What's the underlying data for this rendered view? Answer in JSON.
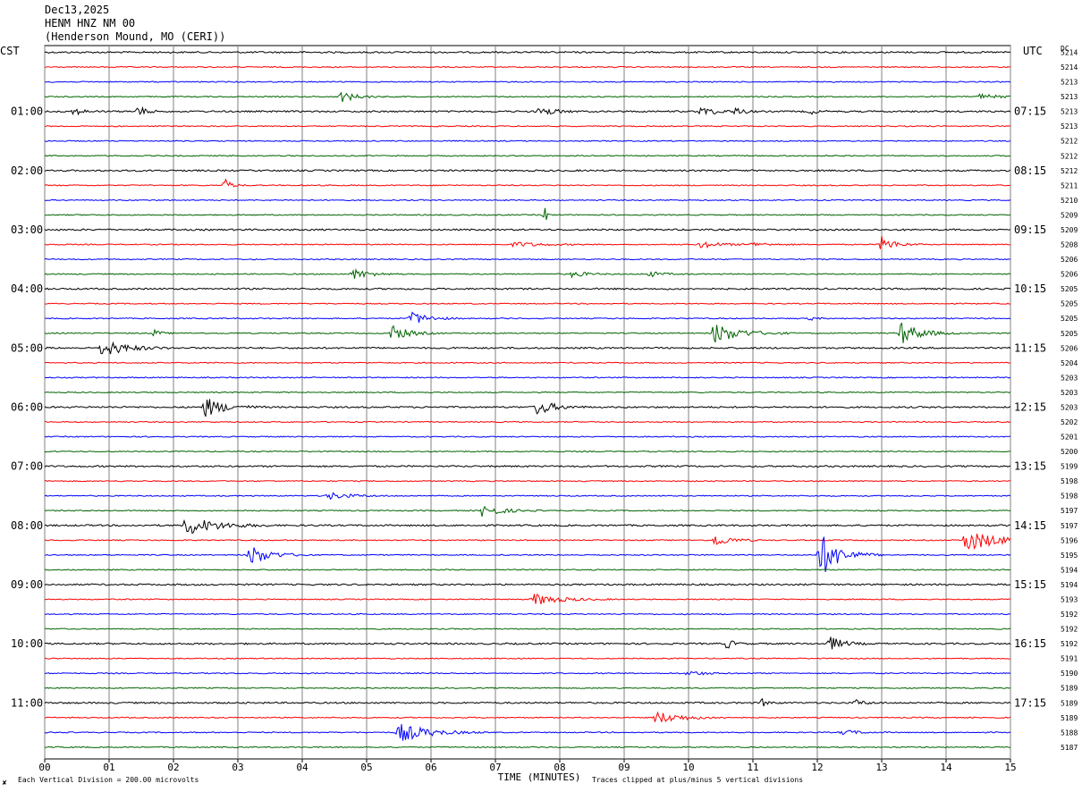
{
  "header": {
    "date": "Dec13,2025",
    "station": "HENM HNZ NM 00",
    "location": "(Henderson Mound, MO (CERI))"
  },
  "left_zone": "CST",
  "right_zone": "UTC",
  "dc_header": "DC",
  "footer": {
    "scale_mark": "✘",
    "scale_note": "Each Vertical Division =  200.00 microvolts",
    "clip_note": "Traces clipped at plus/minus 5 vertical divisions"
  },
  "trace_colors": [
    "#000000",
    "#ff0000",
    "#0000ff",
    "#006400"
  ],
  "chart_data": {
    "type": "line",
    "title": "",
    "xlabel": "TIME (MINUTES)",
    "xlim": [
      0,
      15
    ],
    "x_ticks": [
      "00",
      "01",
      "02",
      "03",
      "04",
      "05",
      "06",
      "07",
      "08",
      "09",
      "10",
      "11",
      "12",
      "13",
      "14",
      "15"
    ],
    "left_hour_labels": [
      "01:00",
      "02:00",
      "03:00",
      "04:00",
      "05:00",
      "06:00",
      "07:00",
      "08:00",
      "09:00",
      "10:00",
      "11:00"
    ],
    "right_hour_labels": [
      "07:15",
      "08:15",
      "09:15",
      "10:15",
      "11:15",
      "12:15",
      "13:15",
      "14:15",
      "15:15",
      "16:15",
      "17:15"
    ],
    "dc_offsets": [
      "5214",
      "5214",
      "5213",
      "5213",
      "5213",
      "5213",
      "5212",
      "5212",
      "5212",
      "5211",
      "5210",
      "5209",
      "5209",
      "5208",
      "5206",
      "5206",
      "5205",
      "5205",
      "5205",
      "5205",
      "5206",
      "5204",
      "5203",
      "5203",
      "5203",
      "5202",
      "5201",
      "5200",
      "5199",
      "5198",
      "5198",
      "5197",
      "5197",
      "5196",
      "5195",
      "5194",
      "5194",
      "5193",
      "5192",
      "5192",
      "5192",
      "5191",
      "5190",
      "5189",
      "5189",
      "5189",
      "5188",
      "5187"
    ],
    "events": [
      {
        "trace": 3,
        "t": 4.6,
        "amp": 6,
        "dur": 0.5
      },
      {
        "trace": 3,
        "t": 14.5,
        "amp": 3,
        "dur": 0.6
      },
      {
        "trace": 4,
        "t": 0.45,
        "amp": 4,
        "dur": 0.3
      },
      {
        "trace": 4,
        "t": 1.45,
        "amp": 6,
        "dur": 0.25
      },
      {
        "trace": 4,
        "t": 7.7,
        "amp": 6,
        "dur": 0.4
      },
      {
        "trace": 4,
        "t": 10.2,
        "amp": 5,
        "dur": 0.5
      },
      {
        "trace": 4,
        "t": 10.75,
        "amp": 5,
        "dur": 0.2
      },
      {
        "trace": 4,
        "t": 11.9,
        "amp": 3,
        "dur": 0.2
      },
      {
        "trace": 9,
        "t": 2.8,
        "amp": 7,
        "dur": 0.2
      },
      {
        "trace": 11,
        "t": 7.78,
        "amp": 9,
        "dur": 0.05
      },
      {
        "trace": 13,
        "t": 7.3,
        "amp": 3,
        "dur": 0.8
      },
      {
        "trace": 13,
        "t": 10.2,
        "amp": 4,
        "dur": 0.6
      },
      {
        "trace": 13,
        "t": 11,
        "amp": 2,
        "dur": 0.6
      },
      {
        "trace": 13,
        "t": 13,
        "amp": 9,
        "dur": 0.4
      },
      {
        "trace": 15,
        "t": 4.8,
        "amp": 6,
        "dur": 0.5
      },
      {
        "trace": 15,
        "t": 8.2,
        "amp": 4,
        "dur": 0.4
      },
      {
        "trace": 15,
        "t": 9.4,
        "amp": 3,
        "dur": 0.4
      },
      {
        "trace": 18,
        "t": 5.7,
        "amp": 8,
        "dur": 0.5
      },
      {
        "trace": 18,
        "t": 11.9,
        "amp": 2,
        "dur": 0.2
      },
      {
        "trace": 19,
        "t": 1.7,
        "amp": 4,
        "dur": 0.2
      },
      {
        "trace": 19,
        "t": 5.4,
        "amp": 9,
        "dur": 0.5
      },
      {
        "trace": 19,
        "t": 10.4,
        "amp": 12,
        "dur": 0.8
      },
      {
        "trace": 19,
        "t": 13.3,
        "amp": 13,
        "dur": 0.6
      },
      {
        "trace": 20,
        "t": 0.9,
        "amp": 10,
        "dur": 0.7
      },
      {
        "trace": 24,
        "t": 2.5,
        "amp": 11,
        "dur": 0.6
      },
      {
        "trace": 24,
        "t": 7.65,
        "amp": 9,
        "dur": 0.5
      },
      {
        "trace": 30,
        "t": 4.4,
        "amp": 4,
        "dur": 0.7
      },
      {
        "trace": 31,
        "t": 6.8,
        "amp": 7,
        "dur": 0.6
      },
      {
        "trace": 32,
        "t": 2.2,
        "amp": 11,
        "dur": 0.9
      },
      {
        "trace": 33,
        "t": 10.4,
        "amp": 7,
        "dur": 0.5
      },
      {
        "trace": 33,
        "t": 14.3,
        "amp": 13,
        "dur": 1.0
      },
      {
        "trace": 34,
        "t": 3.2,
        "amp": 12,
        "dur": 0.6
      },
      {
        "trace": 34,
        "t": 12.05,
        "amp": 25,
        "dur": 0.6
      },
      {
        "trace": 37,
        "t": 7.6,
        "amp": 7,
        "dur": 0.8
      },
      {
        "trace": 40,
        "t": 10.6,
        "amp": 6,
        "dur": 0.2
      },
      {
        "trace": 40,
        "t": 12.2,
        "amp": 8,
        "dur": 0.4
      },
      {
        "trace": 42,
        "t": 10.0,
        "amp": 3,
        "dur": 0.5
      },
      {
        "trace": 44,
        "t": 11.15,
        "amp": 4,
        "dur": 0.2
      },
      {
        "trace": 44,
        "t": 12.6,
        "amp": 3,
        "dur": 0.3
      },
      {
        "trace": 45,
        "t": 9.5,
        "amp": 7,
        "dur": 0.8
      },
      {
        "trace": 46,
        "t": 5.5,
        "amp": 11,
        "dur": 0.9
      },
      {
        "trace": 46,
        "t": 12.4,
        "amp": 3,
        "dur": 0.5
      }
    ]
  }
}
